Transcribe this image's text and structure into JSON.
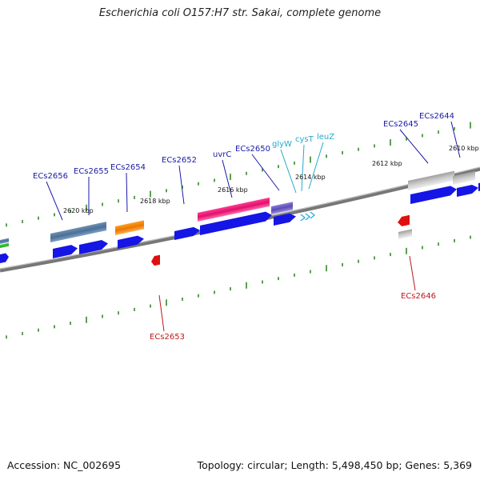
{
  "title": "Escherichia coli O157:H7 str. Sakai, complete genome",
  "footer": {
    "accession": "Accession: NC_002695",
    "summary": "Topology: circular; Length: 5,498,450 bp; Genes: 5,369"
  },
  "colors": {
    "backbone": "#777777",
    "tick": "#2e8b22",
    "cds_forward": "#1515e6",
    "cds_reverse": "#e01010",
    "label_forward": "#1a1aa8",
    "label_reverse": "#c01818",
    "label_trna": "#22aacc",
    "trna": "#22aadd"
  },
  "ticks": [
    "2610 kbp",
    "2612 kbp",
    "2614 kbp",
    "2616 kbp",
    "2618 kbp",
    "2620 kbp"
  ],
  "genes": [
    {
      "id": "ECs2644",
      "strand": "forward"
    },
    {
      "id": "ECs2645",
      "strand": "forward"
    },
    {
      "id": "leuZ",
      "strand": "trna"
    },
    {
      "id": "cysT",
      "strand": "trna"
    },
    {
      "id": "glyW",
      "strand": "trna"
    },
    {
      "id": "ECs2650",
      "strand": "forward"
    },
    {
      "id": "uvrC",
      "strand": "forward"
    },
    {
      "id": "ECs2652",
      "strand": "forward"
    },
    {
      "id": "ECs2654",
      "strand": "forward"
    },
    {
      "id": "ECs2655",
      "strand": "forward"
    },
    {
      "id": "ECs2656",
      "strand": "forward"
    },
    {
      "id": "ECs2646",
      "strand": "reverse"
    },
    {
      "id": "ECs2653",
      "strand": "reverse"
    }
  ]
}
